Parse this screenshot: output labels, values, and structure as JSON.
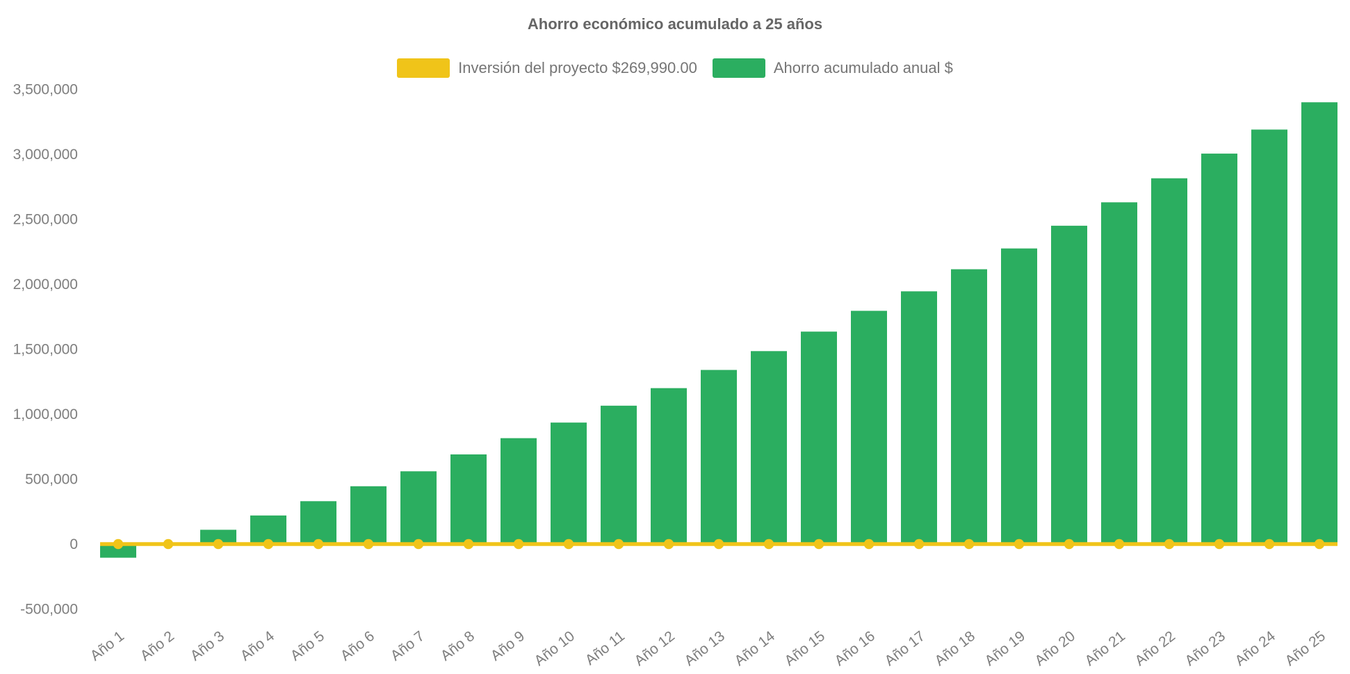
{
  "chart_data": {
    "type": "bar",
    "title": "Ahorro económico acumulado a 25 años",
    "categories": [
      "Año 1",
      "Año 2",
      "Año 3",
      "Año 4",
      "Año 5",
      "Año 6",
      "Año 7",
      "Año 8",
      "Año 9",
      "Año 10",
      "Año 11",
      "Año 12",
      "Año 13",
      "Año 14",
      "Año 15",
      "Año 16",
      "Año 17",
      "Año 18",
      "Año 19",
      "Año 20",
      "Año 21",
      "Año 22",
      "Año 23",
      "Año 24",
      "Año 25"
    ],
    "series": [
      {
        "name": "Inversión del proyecto $269,990.00",
        "type": "line",
        "color": "#F0C419",
        "investment_amount": 269990,
        "plotted_at": 0,
        "values": [
          0,
          0,
          0,
          0,
          0,
          0,
          0,
          0,
          0,
          0,
          0,
          0,
          0,
          0,
          0,
          0,
          0,
          0,
          0,
          0,
          0,
          0,
          0,
          0,
          0
        ]
      },
      {
        "name": "Ahorro acumulado anual $",
        "type": "bar",
        "color": "#2BAE60",
        "values": [
          -105000,
          8000,
          110000,
          220000,
          330000,
          445000,
          560000,
          690000,
          815000,
          935000,
          1065000,
          1200000,
          1340000,
          1485000,
          1635000,
          1795000,
          1945000,
          2115000,
          2275000,
          2450000,
          2630000,
          2815000,
          3005000,
          3190000,
          3400000
        ]
      }
    ],
    "yticks": [
      {
        "value": -500000,
        "label": "-500,000"
      },
      {
        "value": 0,
        "label": "0"
      },
      {
        "value": 500000,
        "label": "500,000"
      },
      {
        "value": 1000000,
        "label": "1,000,000"
      },
      {
        "value": 1500000,
        "label": "1,500,000"
      },
      {
        "value": 2000000,
        "label": "2,000,000"
      },
      {
        "value": 2500000,
        "label": "2,500,000"
      },
      {
        "value": 3000000,
        "label": "3,000,000"
      },
      {
        "value": 3500000,
        "label": "3,500,000"
      }
    ],
    "ylim": [
      -500000,
      3500000
    ],
    "xlabel": "",
    "ylabel": "",
    "grid": false,
    "legend_position": "top",
    "text_colors": {
      "title": "#666666",
      "legend": "#757575",
      "ticks": "#7E7E7E"
    }
  }
}
